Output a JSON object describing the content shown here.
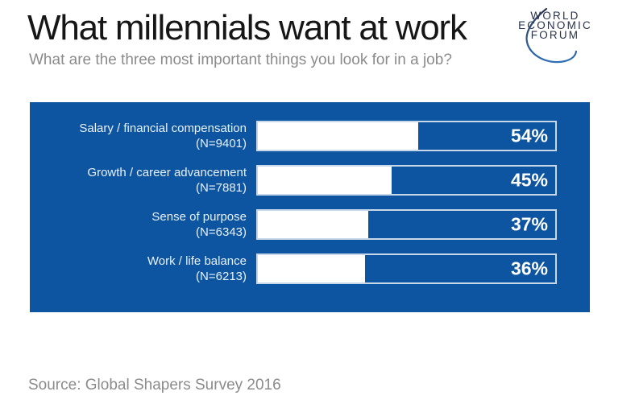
{
  "header": {
    "title": "What millennials want at work",
    "subtitle": "What are the three most important things you look for in a job?"
  },
  "logo": {
    "lines": {
      "line1": "WORLD",
      "line2": "ECONOMIC",
      "line3": "FORUM"
    },
    "text_color": "#27324b",
    "swoosh_color_top": "#2a3550",
    "swoosh_color_bottom": "#2f6fb5"
  },
  "colors": {
    "panel_blue": "#0d55a1",
    "bar_fill_white": "#ffffff",
    "track_border": "#c7d8ea",
    "label_text": "#e8f1fb",
    "title_text": "#161616",
    "muted_text": "#8b8b8b"
  },
  "chart_data": {
    "type": "bar",
    "orientation": "horizontal",
    "title": "What millennials want at work",
    "subtitle": "What are the three most important things you look for in a job?",
    "xlabel": "",
    "ylabel": "",
    "xlim": [
      0,
      100
    ],
    "unit": "%",
    "grid": false,
    "legend": false,
    "categories": [
      "Salary / financial compensation",
      "Growth / career advancement",
      "Sense of purpose",
      "Work / life balance"
    ],
    "values": [
      54,
      45,
      37,
      36
    ],
    "sample_sizes": [
      9401,
      7881,
      6343,
      6213
    ],
    "rows": [
      {
        "label": "Salary / financial compensation",
        "n": "(N=9401)",
        "value": 54,
        "pct": "54%"
      },
      {
        "label": "Growth / career advancement",
        "n": "(N=7881)",
        "value": 45,
        "pct": "45%"
      },
      {
        "label": "Sense of purpose",
        "n": "(N=6343)",
        "value": 37,
        "pct": "37%"
      },
      {
        "label": "Work / life balance",
        "n": "(N=6213)",
        "value": 36,
        "pct": "36%"
      }
    ]
  },
  "footer": {
    "source": "Source: Global Shapers Survey 2016"
  }
}
